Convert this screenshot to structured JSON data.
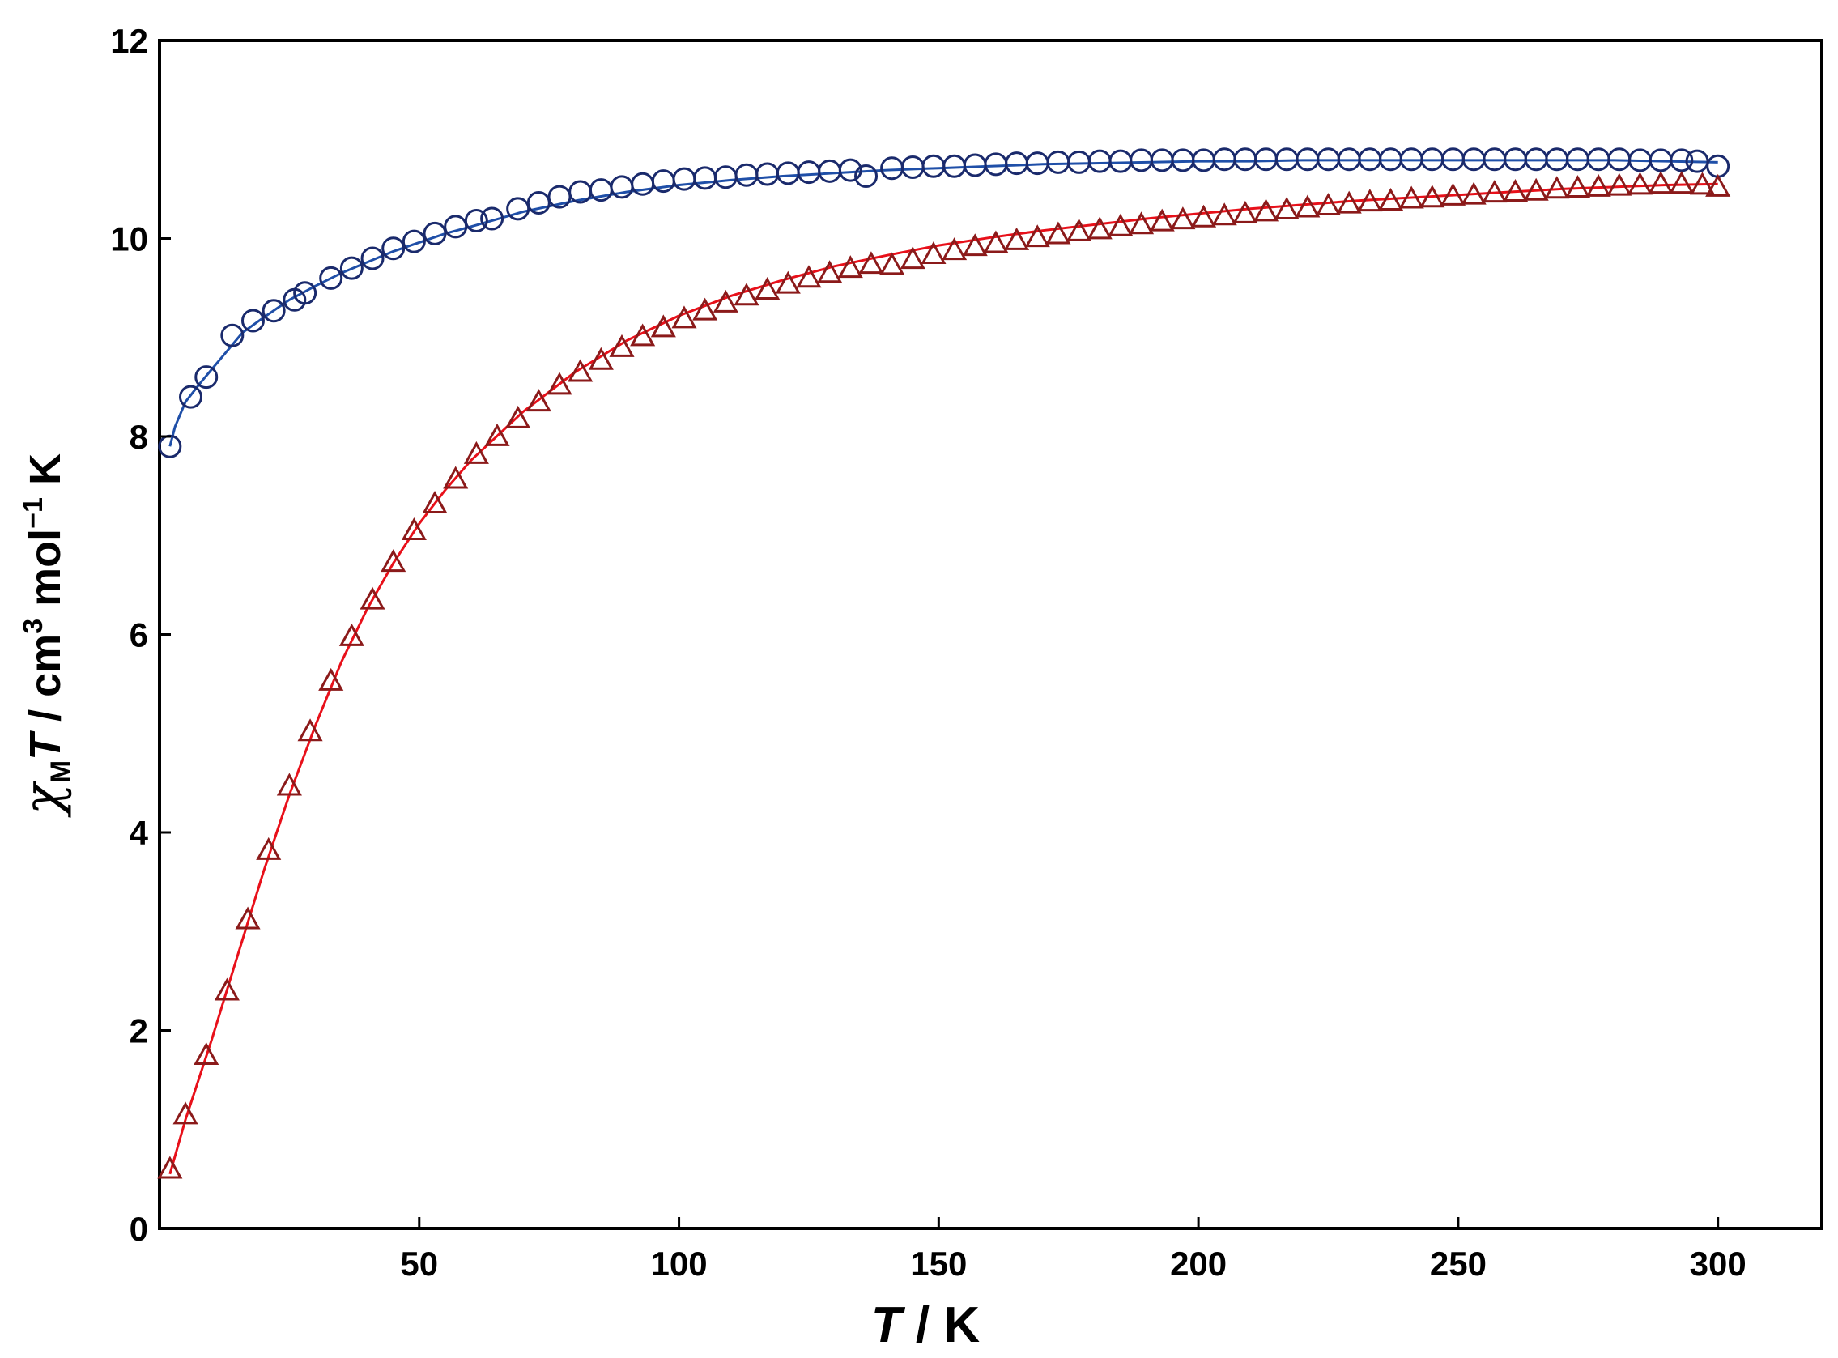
{
  "chart_data": {
    "type": "scatter",
    "xlabel": {
      "italic": "T",
      "rest": " / K"
    },
    "ylabel": {
      "chi": "χ",
      "sub": "M",
      "italic": "T",
      "rest": " / cm",
      "sup1": "3",
      "rest2": " mol",
      "sup2": "−1",
      "rest3": " K"
    },
    "xlim": [
      0,
      320
    ],
    "ylim": [
      0,
      12
    ],
    "xticks": [
      50,
      100,
      150,
      200,
      250,
      300
    ],
    "yticks": [
      0,
      2,
      4,
      6,
      8,
      10,
      12
    ],
    "grid": false,
    "legend": "none",
    "series": [
      {
        "marker": "circle",
        "marker_color": "#1a2a6c",
        "line_color": "#1f4fa8",
        "x": [
          2,
          6,
          9,
          14,
          18,
          22,
          26,
          28,
          33,
          37,
          41,
          45,
          49,
          53,
          57,
          61,
          64,
          69,
          73,
          77,
          81,
          85,
          89,
          93,
          97,
          101,
          105,
          109,
          113,
          117,
          121,
          125,
          129,
          133,
          136,
          141,
          145,
          149,
          153,
          157,
          161,
          165,
          169,
          173,
          177,
          181,
          185,
          189,
          193,
          197,
          201,
          205,
          209,
          213,
          217,
          221,
          225,
          229,
          233,
          237,
          241,
          245,
          249,
          253,
          257,
          261,
          265,
          269,
          273,
          277,
          281,
          285,
          289,
          293,
          296,
          300
        ],
        "y": [
          7.9,
          8.4,
          8.6,
          9.02,
          9.17,
          9.27,
          9.38,
          9.45,
          9.6,
          9.7,
          9.8,
          9.9,
          9.97,
          10.05,
          10.12,
          10.18,
          10.2,
          10.3,
          10.36,
          10.42,
          10.47,
          10.49,
          10.52,
          10.55,
          10.58,
          10.6,
          10.61,
          10.62,
          10.64,
          10.65,
          10.66,
          10.67,
          10.68,
          10.69,
          10.63,
          10.71,
          10.72,
          10.73,
          10.73,
          10.74,
          10.75,
          10.76,
          10.76,
          10.77,
          10.77,
          10.78,
          10.78,
          10.79,
          10.79,
          10.79,
          10.79,
          10.8,
          10.8,
          10.8,
          10.8,
          10.8,
          10.8,
          10.8,
          10.8,
          10.8,
          10.8,
          10.8,
          10.8,
          10.8,
          10.8,
          10.8,
          10.8,
          10.8,
          10.8,
          10.8,
          10.8,
          10.79,
          10.79,
          10.79,
          10.78,
          10.73
        ],
        "fit_x": [
          2,
          3,
          5,
          8,
          12,
          16,
          20,
          25,
          30,
          35,
          40,
          45,
          50,
          55,
          60,
          70,
          80,
          90,
          100,
          110,
          120,
          130,
          140,
          150,
          160,
          170,
          180,
          190,
          200,
          210,
          220,
          230,
          240,
          250,
          260,
          270,
          280,
          290,
          300
        ],
        "fit_y": [
          7.9,
          8.1,
          8.35,
          8.55,
          8.8,
          9.05,
          9.2,
          9.38,
          9.52,
          9.65,
          9.76,
          9.87,
          9.96,
          10.05,
          10.12,
          10.27,
          10.38,
          10.47,
          10.54,
          10.59,
          10.63,
          10.66,
          10.69,
          10.71,
          10.73,
          10.75,
          10.76,
          10.77,
          10.78,
          10.78,
          10.79,
          10.79,
          10.79,
          10.79,
          10.79,
          10.79,
          10.79,
          10.78,
          10.77
        ]
      },
      {
        "marker": "triangle",
        "marker_color": "#8b1a1a",
        "line_color": "#e8101a",
        "x": [
          2,
          5,
          9,
          13,
          17,
          21,
          25,
          29,
          33,
          37,
          41,
          45,
          49,
          53,
          57,
          61,
          65,
          69,
          73,
          77,
          81,
          85,
          89,
          93,
          97,
          101,
          105,
          109,
          113,
          117,
          121,
          125,
          129,
          133,
          137,
          141,
          145,
          149,
          153,
          157,
          161,
          165,
          169,
          173,
          177,
          181,
          185,
          189,
          193,
          197,
          201,
          205,
          209,
          213,
          217,
          221,
          225,
          229,
          233,
          237,
          241,
          245,
          249,
          253,
          257,
          261,
          265,
          269,
          273,
          277,
          281,
          285,
          289,
          293,
          297,
          300
        ],
        "y": [
          0.6,
          1.15,
          1.75,
          2.4,
          3.12,
          3.82,
          4.47,
          5.02,
          5.53,
          5.98,
          6.35,
          6.73,
          7.05,
          7.32,
          7.57,
          7.82,
          8.0,
          8.18,
          8.35,
          8.52,
          8.65,
          8.77,
          8.9,
          9.01,
          9.1,
          9.19,
          9.27,
          9.35,
          9.42,
          9.48,
          9.54,
          9.6,
          9.65,
          9.7,
          9.74,
          9.73,
          9.79,
          9.84,
          9.88,
          9.92,
          9.95,
          9.98,
          10.01,
          10.04,
          10.07,
          10.09,
          10.12,
          10.14,
          10.17,
          10.19,
          10.21,
          10.23,
          10.25,
          10.27,
          10.29,
          10.31,
          10.33,
          10.35,
          10.37,
          10.38,
          10.4,
          10.41,
          10.43,
          10.44,
          10.46,
          10.47,
          10.48,
          10.5,
          10.51,
          10.52,
          10.53,
          10.54,
          10.55,
          10.55,
          10.54,
          10.52
        ],
        "fit_x": [
          2,
          5,
          10,
          15,
          20,
          25,
          30,
          35,
          40,
          45,
          50,
          55,
          60,
          70,
          80,
          90,
          100,
          110,
          120,
          130,
          140,
          150,
          160,
          170,
          180,
          190,
          200,
          210,
          220,
          230,
          240,
          250,
          260,
          270,
          280,
          290,
          300
        ],
        "fit_y": [
          0.55,
          1.1,
          1.9,
          2.75,
          3.6,
          4.38,
          5.08,
          5.72,
          6.26,
          6.72,
          7.12,
          7.46,
          7.76,
          8.25,
          8.65,
          8.97,
          9.22,
          9.42,
          9.58,
          9.72,
          9.83,
          9.93,
          10.01,
          10.08,
          10.14,
          10.2,
          10.25,
          10.3,
          10.34,
          10.38,
          10.41,
          10.44,
          10.47,
          10.5,
          10.52,
          10.54,
          10.55
        ]
      }
    ]
  }
}
